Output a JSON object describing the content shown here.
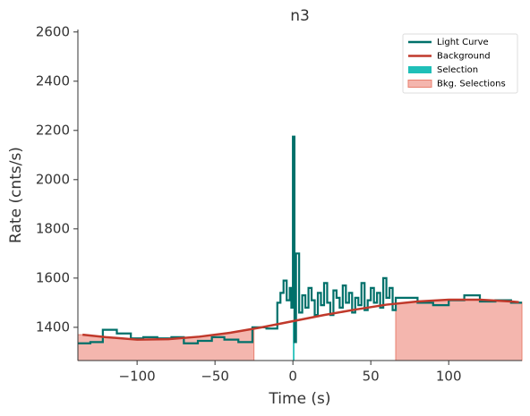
{
  "chart_data": {
    "type": "line",
    "title": "n3",
    "xlabel": "Time (s)",
    "ylabel": "Rate (cnts/s)",
    "xlim": [
      -138,
      147
    ],
    "ylim": [
      1265,
      2610
    ],
    "xticks": [
      {
        "value": -100,
        "label": "−100"
      },
      {
        "value": -50,
        "label": "−50"
      },
      0,
      50,
      100
    ],
    "yticks": [
      1400,
      1600,
      1800,
      2000,
      2200,
      2400,
      2600
    ],
    "legend": "upper right",
    "series": [
      {
        "name": "Light Curve",
        "color": "#00706a",
        "drawstyle": "steps-post",
        "x": [
          -138,
          -130,
          -122,
          -113,
          -104,
          -96,
          -87,
          -78,
          -70,
          -61,
          -52,
          -44,
          -35,
          -26,
          -17,
          -10,
          -8,
          -6,
          -4,
          -2,
          -1,
          0,
          1,
          2,
          4,
          6,
          8,
          10,
          12,
          14,
          16,
          18,
          20,
          22,
          24,
          26,
          28,
          30,
          32,
          34,
          36,
          38,
          40,
          42,
          44,
          46,
          48,
          50,
          52,
          54,
          56,
          58,
          60,
          62,
          64,
          66,
          80,
          90,
          100,
          110,
          120,
          130,
          140
        ],
        "values": [
          1335,
          1340,
          1390,
          1375,
          1355,
          1360,
          1355,
          1360,
          1335,
          1345,
          1360,
          1350,
          1340,
          1400,
          1395,
          1500,
          1540,
          1590,
          1510,
          1560,
          1480,
          2175,
          1340,
          1700,
          1460,
          1530,
          1480,
          1560,
          1510,
          1450,
          1540,
          1490,
          1580,
          1500,
          1450,
          1550,
          1520,
          1480,
          1570,
          1500,
          1540,
          1460,
          1520,
          1490,
          1580,
          1470,
          1510,
          1560,
          1500,
          1540,
          1480,
          1600,
          1520,
          1560,
          1470,
          1520,
          1500,
          1490,
          1510,
          1530,
          1505,
          1510,
          1500
        ]
      },
      {
        "name": "Background",
        "color": "#c0392b",
        "x": [
          -135,
          -120,
          -100,
          -80,
          -60,
          -40,
          -20,
          0,
          20,
          40,
          60,
          80,
          100,
          120,
          140,
          145
        ],
        "values": [
          1370,
          1360,
          1350,
          1352,
          1362,
          1378,
          1400,
          1425,
          1450,
          1472,
          1492,
          1505,
          1512,
          1512,
          1505,
          1502
        ]
      },
      {
        "name": "Selection",
        "color": "#1fbfb8",
        "ranges": [
          [
            0,
            1
          ]
        ]
      },
      {
        "name": "Bkg. Selections",
        "color": "#f4b6ae",
        "ranges": [
          [
            -138,
            -25
          ],
          [
            66,
            147
          ]
        ]
      }
    ]
  }
}
